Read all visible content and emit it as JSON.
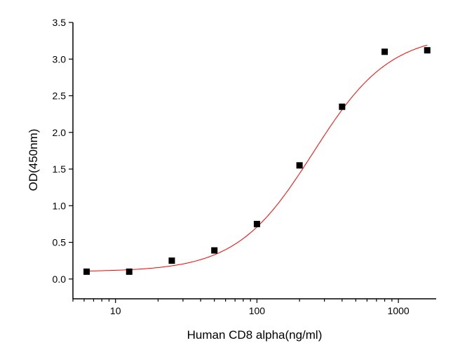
{
  "chart_data": {
    "type": "scatter",
    "xlabel": "Human CD8 alpha(ng/ml)",
    "ylabel": "OD(450nm)",
    "xscale": "log",
    "xlim": [
      5,
      1850
    ],
    "ylim": [
      -0.27,
      3.5
    ],
    "xticks": [
      {
        "v": 10,
        "label": "10"
      },
      {
        "v": 100,
        "label": "100"
      },
      {
        "v": 1000,
        "label": "1000"
      }
    ],
    "yticks": [
      {
        "v": 0,
        "label": "0.0"
      },
      {
        "v": 0.5,
        "label": "0.5"
      },
      {
        "v": 1,
        "label": "1.0"
      },
      {
        "v": 1.5,
        "label": "1.5"
      },
      {
        "v": 2,
        "label": "2.0"
      },
      {
        "v": 2.5,
        "label": "2.5"
      },
      {
        "v": 3,
        "label": "3.0"
      },
      {
        "v": 3.5,
        "label": "3.5"
      }
    ],
    "grid": false,
    "series": [
      {
        "x": [
          6.25,
          12.5,
          25,
          50,
          100,
          200,
          400,
          800,
          1600
        ],
        "y": [
          0.1,
          0.1,
          0.25,
          0.39,
          0.75,
          1.55,
          2.35,
          3.1,
          3.12
        ],
        "color": "#000000",
        "marker": "square"
      }
    ],
    "fit": {
      "type": "4PL",
      "bottom": 0.1,
      "top": 3.35,
      "ec50": 250,
      "hill": 1.6,
      "color": "#ff0000"
    }
  }
}
